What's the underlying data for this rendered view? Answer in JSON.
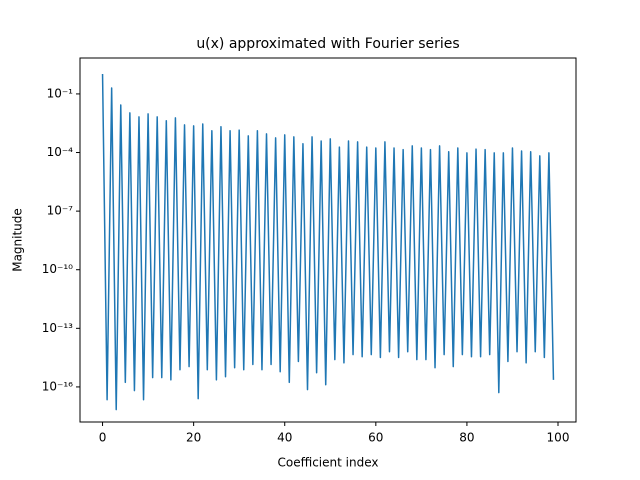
{
  "chart_data": {
    "type": "line",
    "title": "u(x) approximated with Fourier series",
    "xlabel": "Coefficient index",
    "ylabel": "Magnitude",
    "x": [
      0,
      1,
      2,
      3,
      4,
      5,
      6,
      7,
      8,
      9,
      10,
      11,
      12,
      13,
      14,
      15,
      16,
      17,
      18,
      19,
      20,
      21,
      22,
      23,
      24,
      25,
      26,
      27,
      28,
      29,
      30,
      31,
      32,
      33,
      34,
      35,
      36,
      37,
      38,
      39,
      40,
      41,
      42,
      43,
      44,
      45,
      46,
      47,
      48,
      49,
      50,
      51,
      52,
      53,
      54,
      55,
      56,
      57,
      58,
      59,
      60,
      61,
      62,
      63,
      64,
      65,
      66,
      67,
      68,
      69,
      70,
      71,
      72,
      73,
      74,
      75,
      76,
      77,
      78,
      79,
      80,
      81,
      82,
      83,
      84,
      85,
      86,
      87,
      88,
      89,
      90,
      91,
      92,
      93,
      94,
      95,
      96,
      97,
      98,
      99
    ],
    "series": [
      {
        "name": "u(x)",
        "color": "#1f77b4",
        "values": [
          1.05,
          2.2e-17,
          0.2,
          6.9e-18,
          0.027,
          1.7e-16,
          0.0107,
          6.5e-17,
          0.0067,
          2.2e-17,
          0.0095,
          3e-16,
          0.0067,
          3e-16,
          0.0042,
          2.3e-16,
          0.0059,
          7.6e-16,
          0.0026,
          1.1e-15,
          0.0023,
          2.5e-17,
          0.0029,
          7.6e-16,
          0.0013,
          2.3e-16,
          0.0021,
          3.3e-16,
          0.0013,
          9.6e-16,
          0.0014,
          7.6e-16,
          0.00071,
          1.4e-15,
          0.0013,
          7.6e-16,
          0.0009,
          1.4e-15,
          0.00056,
          6e-16,
          0.0008,
          1.7e-16,
          0.00063,
          2e-15,
          0.00028,
          7.3e-17,
          0.00063,
          5.3e-16,
          0.00039,
          1.3e-16,
          0.0005,
          2.5e-15,
          0.00019,
          1.7e-15,
          0.00039,
          4.5e-15,
          0.00035,
          3.5e-15,
          0.00019,
          4.5e-15,
          0.00017,
          3.2e-15,
          0.00035,
          6.3e-15,
          0.00017,
          3.2e-15,
          0.00014,
          6.3e-15,
          0.00022,
          2.5e-15,
          0.00017,
          2.5e-15,
          0.00014,
          9.6e-16,
          0.00022,
          4.5e-15,
          0.00011,
          1.1e-15,
          0.00017,
          4.5e-15,
          9.6e-05,
          3.5e-15,
          0.00015,
          3.5e-15,
          0.00014,
          4.5e-15,
          9.6e-05,
          5.1e-17,
          9.6e-05,
          2e-15,
          0.00017,
          6.3e-15,
          0.00012,
          1.7e-15,
          0.00011,
          6.3e-15,
          6.7e-05,
          3.2e-15,
          9.6e-05,
          2.3e-16
        ]
      }
    ],
    "xlim": [
      -4.95,
      103.95
    ],
    "xticks": [
      0,
      20,
      40,
      60,
      80,
      100
    ],
    "ylim": [
      1.6e-18,
      6.9
    ],
    "ylog": true,
    "yticks": [
      {
        "value": 1e-16,
        "label": "10⁻¹⁶"
      },
      {
        "value": 1e-13,
        "label": "10⁻¹³"
      },
      {
        "value": 1e-10,
        "label": "10⁻¹⁰"
      },
      {
        "value": 1e-07,
        "label": "10⁻⁷"
      },
      {
        "value": 0.0001,
        "label": "10⁻⁴"
      },
      {
        "value": 0.1,
        "label": "10⁻¹"
      }
    ],
    "grid": false
  }
}
